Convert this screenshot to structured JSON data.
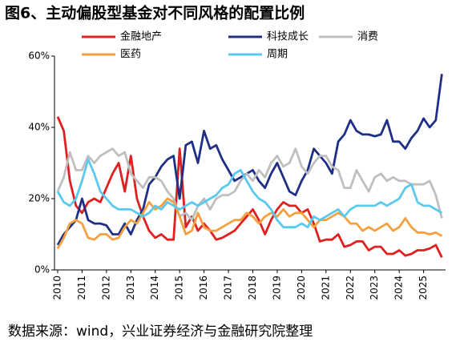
{
  "chart_data": {
    "type": "line",
    "title": "图6、主动偏股型基金对不同风格的配置比例",
    "source": "数据来源：wind，兴业证券经济与金融研究院整理",
    "x": [
      2010,
      2010.25,
      2010.5,
      2010.75,
      2011,
      2011.25,
      2011.5,
      2011.75,
      2012,
      2012.25,
      2012.5,
      2012.75,
      2013,
      2013.25,
      2013.5,
      2013.75,
      2014,
      2014.25,
      2014.5,
      2014.75,
      2015,
      2015.25,
      2015.5,
      2015.75,
      2016,
      2016.25,
      2016.5,
      2016.75,
      2017,
      2017.25,
      2017.5,
      2017.75,
      2018,
      2018.25,
      2018.5,
      2018.75,
      2019,
      2019.25,
      2019.5,
      2019.75,
      2020,
      2020.25,
      2020.5,
      2020.75,
      2021,
      2021.25,
      2021.5,
      2021.75,
      2022,
      2022.25,
      2022.5,
      2022.75,
      2023,
      2023.25,
      2023.5,
      2023.75,
      2024,
      2024.25,
      2024.5,
      2024.75,
      2025,
      2025.25,
      2025.5,
      2025.75
    ],
    "series": [
      {
        "name": "金融地产",
        "color": "#e02020",
        "values": [
          43,
          39,
          25,
          18,
          16,
          19,
          20,
          19,
          23,
          27,
          30,
          22,
          32,
          20,
          15,
          11,
          9,
          10,
          8.5,
          8.5,
          34,
          12,
          15,
          11,
          13,
          11,
          8.5,
          9,
          10,
          11,
          13,
          15,
          17,
          14,
          10,
          14,
          17,
          19,
          18,
          18,
          16,
          17,
          13,
          8,
          8.5,
          8.5,
          10,
          6.5,
          7,
          8,
          8,
          5.5,
          6.5,
          6.5,
          4.5,
          4.5,
          5.5,
          4,
          4.5,
          5.5,
          5.5,
          6,
          7,
          3.5
        ]
      },
      {
        "name": "科技成长",
        "color": "#1f2f86",
        "values": [
          7,
          10,
          12,
          14,
          20,
          14,
          13,
          13,
          12.5,
          10,
          10,
          13,
          10,
          14,
          17,
          24,
          26,
          29,
          31,
          32,
          20,
          35,
          36,
          30,
          39,
          34,
          35,
          31,
          28,
          25,
          26,
          27,
          28,
          25,
          23,
          27,
          30,
          26,
          22,
          21,
          25,
          28,
          34,
          32,
          30,
          27,
          36,
          38,
          42,
          39,
          38,
          38,
          37.5,
          38,
          42,
          36,
          36,
          34,
          37,
          39,
          42.5,
          40,
          42,
          55
        ]
      },
      {
        "name": "消费",
        "color": "#bfbfbf",
        "values": [
          22,
          26,
          33,
          28,
          28,
          32,
          30,
          32,
          33,
          34,
          32,
          33,
          27,
          25,
          23,
          26,
          26,
          25,
          22,
          20,
          15,
          16,
          14,
          18,
          20,
          17,
          20,
          21,
          21,
          22,
          25,
          27,
          25,
          28,
          26,
          30,
          32,
          29,
          30,
          34,
          29,
          27,
          30,
          32,
          32,
          29,
          28,
          23,
          23,
          28,
          25,
          22,
          26,
          27,
          25,
          26,
          25,
          25,
          24,
          24,
          24,
          25,
          21,
          14.5
        ]
      },
      {
        "name": "医药",
        "color": "#f5a040",
        "values": [
          6,
          9,
          13,
          14,
          13,
          9,
          8.5,
          10,
          10,
          8.5,
          9,
          12,
          14,
          13,
          16,
          19,
          17,
          18,
          20,
          19,
          15,
          10,
          11,
          16,
          12,
          11,
          11,
          12,
          13,
          14,
          14,
          16,
          15,
          13,
          15,
          16,
          15,
          17,
          15,
          16,
          16,
          14,
          12,
          14,
          14,
          15,
          16,
          15,
          13,
          13,
          11,
          12,
          11,
          12,
          13,
          11,
          12,
          14.5,
          12,
          10.5,
          10.5,
          10,
          10.5,
          9.5
        ]
      },
      {
        "name": "周期",
        "color": "#5bc8ef",
        "values": [
          22,
          19,
          18,
          20,
          25,
          31,
          27,
          22,
          20,
          18,
          17,
          17,
          17,
          16,
          15,
          16,
          18,
          17,
          19,
          18,
          17,
          18,
          19,
          18,
          19,
          20,
          21,
          23,
          24,
          27,
          28,
          25,
          22,
          20,
          19,
          17,
          14,
          12,
          12,
          12,
          13,
          12,
          15,
          14,
          15,
          16,
          17,
          15,
          17,
          18,
          18,
          18,
          18,
          19,
          18,
          19,
          20,
          23,
          24,
          19,
          18,
          18,
          17,
          16
        ]
      }
    ],
    "xlim": [
      2009.87,
      2025.9
    ],
    "xticks": [
      2010,
      2011,
      2012,
      2013,
      2014,
      2015,
      2016,
      2017,
      2018,
      2019,
      2020,
      2021,
      2022,
      2023,
      2024,
      2025
    ],
    "ylim": [
      0,
      60
    ],
    "yticks": [
      {
        "value": 0,
        "label": "0%"
      },
      {
        "value": 20,
        "label": "20%"
      },
      {
        "value": 40,
        "label": "40%"
      },
      {
        "value": 60,
        "label": "60%"
      }
    ]
  }
}
